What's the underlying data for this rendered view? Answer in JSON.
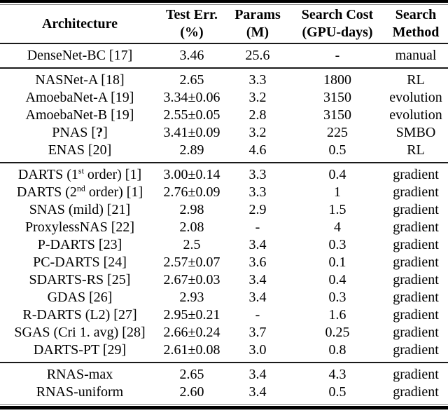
{
  "colors": {
    "text": "#000000",
    "rule": "#1a1a1a",
    "background": "#ffffff"
  },
  "table": {
    "columns": [
      {
        "id": "architecture",
        "line1": "Architecture",
        "line2": ""
      },
      {
        "id": "test_err",
        "line1": "Test Err.",
        "line2": "(%)"
      },
      {
        "id": "params",
        "line1": "Params",
        "line2": "(M)"
      },
      {
        "id": "search_cost",
        "line1": "Search Cost",
        "line2": "(GPU-days)"
      },
      {
        "id": "search_method",
        "line1": "Search",
        "line2": "Method"
      }
    ],
    "sections": [
      {
        "rows": [
          {
            "architecture": [
              {
                "t": "DenseNet-BC [17]"
              }
            ],
            "test_err": "3.46",
            "params": "25.6",
            "search_cost": "-",
            "search_method": "manual"
          }
        ]
      },
      {
        "rows": [
          {
            "architecture": [
              {
                "t": "NASNet-A [18]"
              }
            ],
            "test_err": "2.65",
            "params": "3.3",
            "search_cost": "1800",
            "search_method": "RL"
          },
          {
            "architecture": [
              {
                "t": "AmoebaNet-A [19]"
              }
            ],
            "test_err": "3.34±0.06",
            "params": "3.2",
            "search_cost": "3150",
            "search_method": "evolution"
          },
          {
            "architecture": [
              {
                "t": "AmoebaNet-B [19]"
              }
            ],
            "test_err": "2.55±0.05",
            "params": "2.8",
            "search_cost": "3150",
            "search_method": "evolution"
          },
          {
            "architecture": [
              {
                "t": "PNAS ["
              },
              {
                "b": "?"
              },
              {
                "t": "]"
              }
            ],
            "test_err": "3.41±0.09",
            "params": "3.2",
            "search_cost": "225",
            "search_method": "SMBO"
          },
          {
            "architecture": [
              {
                "t": "ENAS [20]"
              }
            ],
            "test_err": "2.89",
            "params": "4.6",
            "search_cost": "0.5",
            "search_method": "RL"
          }
        ]
      },
      {
        "rows": [
          {
            "architecture": [
              {
                "t": "DARTS (1"
              },
              {
                "sup": "st"
              },
              {
                "t": " order) [1]"
              }
            ],
            "test_err": "3.00±0.14",
            "params": "3.3",
            "search_cost": "0.4",
            "search_method": "gradient"
          },
          {
            "architecture": [
              {
                "t": "DARTS (2"
              },
              {
                "sup": "nd"
              },
              {
                "t": " order) [1]"
              }
            ],
            "test_err": "2.76±0.09",
            "params": "3.3",
            "search_cost": "1",
            "search_method": "gradient"
          },
          {
            "architecture": [
              {
                "t": "SNAS (mild) [21]"
              }
            ],
            "test_err": "2.98",
            "params": "2.9",
            "search_cost": "1.5",
            "search_method": "gradient"
          },
          {
            "architecture": [
              {
                "t": "ProxylessNAS [22]"
              }
            ],
            "test_err": "2.08",
            "params": "-",
            "search_cost": "4",
            "search_method": "gradient"
          },
          {
            "architecture": [
              {
                "t": "P-DARTS [23]"
              }
            ],
            "test_err": "2.5",
            "params": "3.4",
            "search_cost": "0.3",
            "search_method": "gradient"
          },
          {
            "architecture": [
              {
                "t": "PC-DARTS [24]"
              }
            ],
            "test_err": "2.57±0.07",
            "params": "3.6",
            "search_cost": "0.1",
            "search_method": "gradient"
          },
          {
            "architecture": [
              {
                "t": "SDARTS-RS [25]"
              }
            ],
            "test_err": "2.67±0.03",
            "params": "3.4",
            "search_cost": "0.4",
            "search_method": "gradient"
          },
          {
            "architecture": [
              {
                "t": "GDAS [26]"
              }
            ],
            "test_err": "2.93",
            "params": "3.4",
            "search_cost": "0.3",
            "search_method": "gradient"
          },
          {
            "architecture": [
              {
                "t": "R-DARTS (L2) [27]"
              }
            ],
            "test_err": "2.95±0.21",
            "params": "-",
            "search_cost": "1.6",
            "search_method": "gradient"
          },
          {
            "architecture": [
              {
                "t": "SGAS (Cri 1. avg) [28]"
              }
            ],
            "test_err": "2.66±0.24",
            "params": "3.7",
            "search_cost": "0.25",
            "search_method": "gradient"
          },
          {
            "architecture": [
              {
                "t": "DARTS-PT [29]"
              }
            ],
            "test_err": "2.61±0.08",
            "params": "3.0",
            "search_cost": "0.8",
            "search_method": "gradient"
          }
        ]
      },
      {
        "rows": [
          {
            "architecture": [
              {
                "t": "RNAS-max"
              }
            ],
            "test_err": "2.65",
            "params": "3.4",
            "search_cost": "4.3",
            "search_method": "gradient"
          },
          {
            "architecture": [
              {
                "t": "RNAS-uniform"
              }
            ],
            "test_err": "2.60",
            "params": "3.4",
            "search_cost": "0.5",
            "search_method": "gradient"
          }
        ]
      }
    ]
  }
}
